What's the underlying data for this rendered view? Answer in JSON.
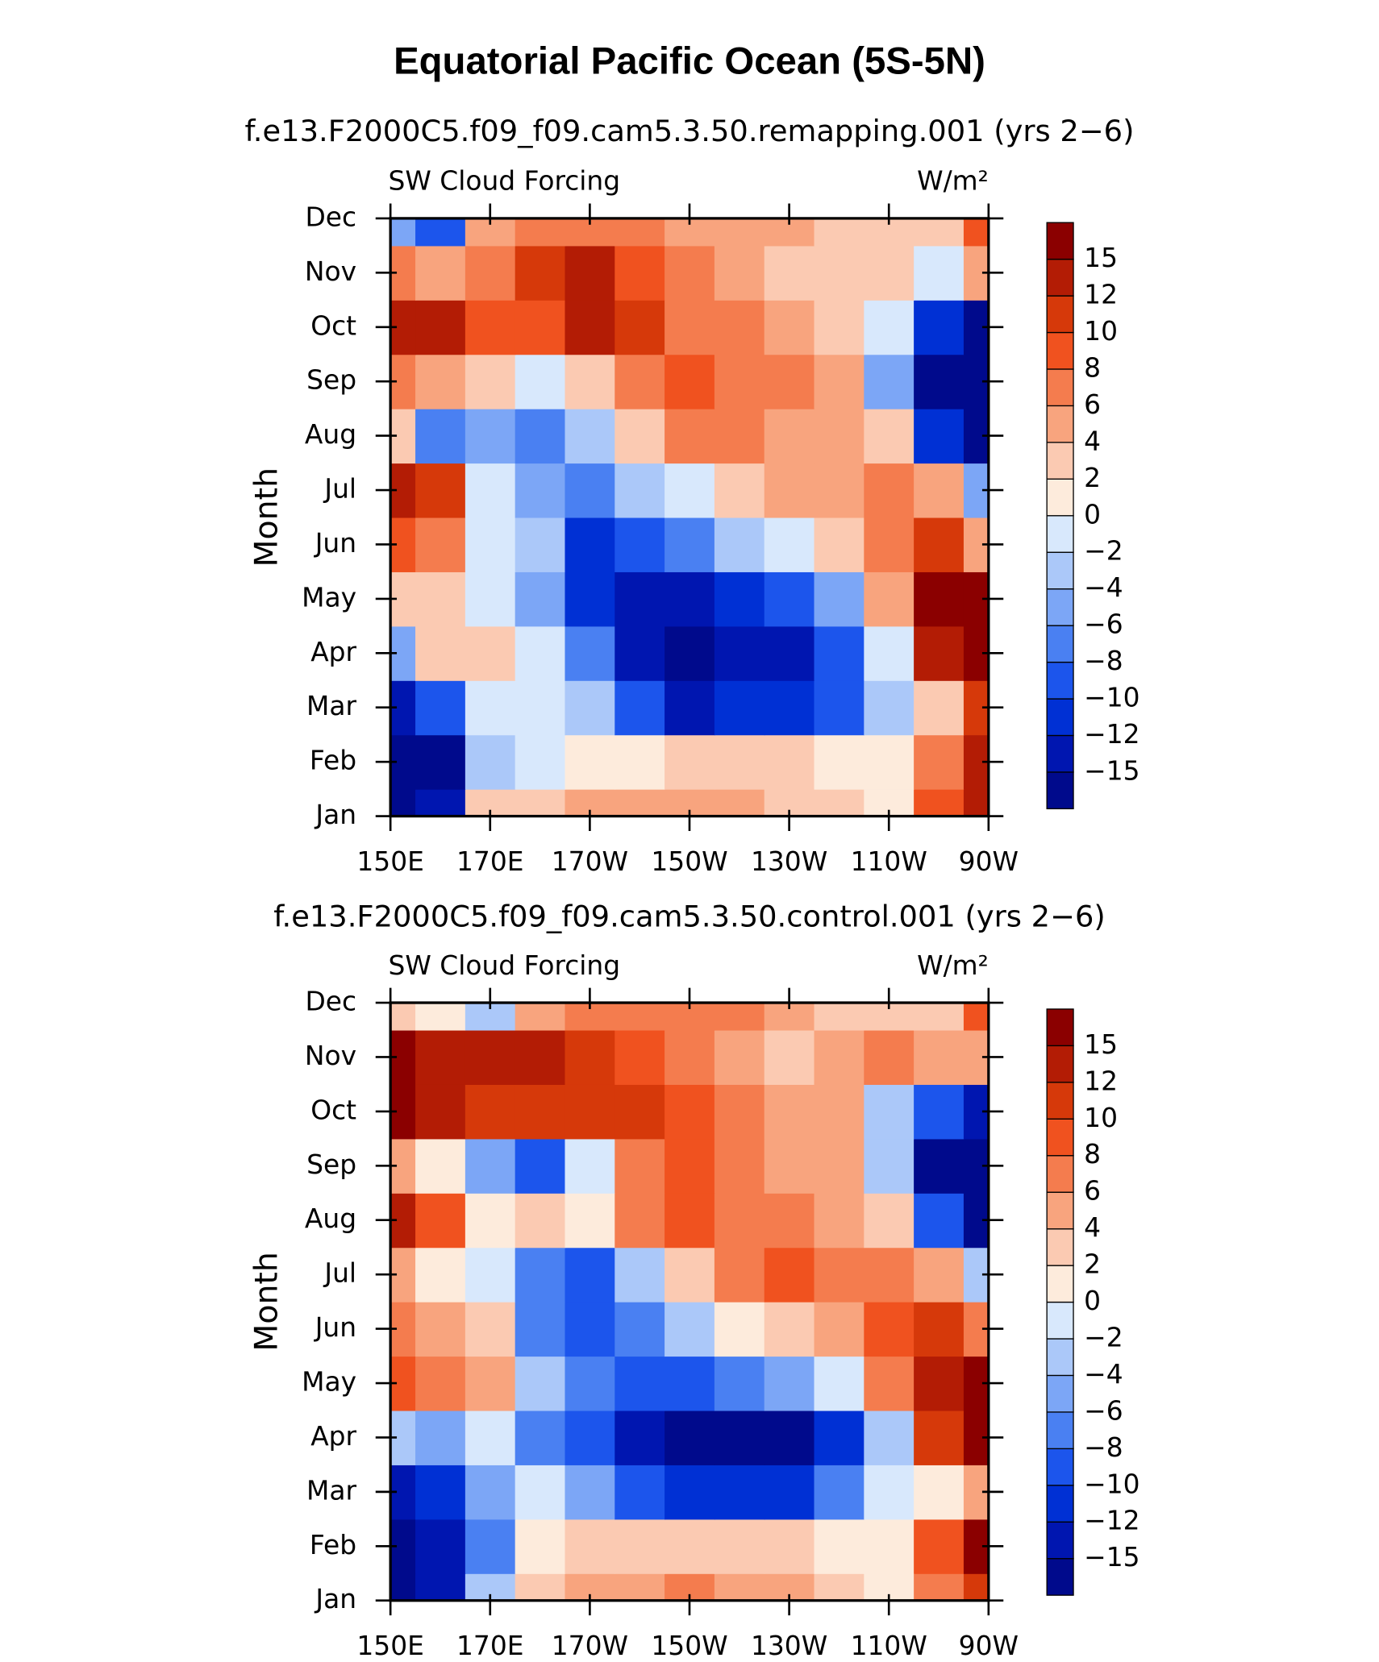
{
  "title": "Equatorial Pacific Ocean (5S-5N)",
  "chart_data": [
    {
      "type": "heatmap",
      "subtitle": "f.e13.F2000C5.f09_f09.cam5.3.50.remapping.001 (yrs 2−6)",
      "left_label": "SW Cloud Forcing",
      "right_label": "W/m²",
      "y_label": "Month",
      "x": [
        150,
        160,
        170,
        180,
        190,
        200,
        210,
        220,
        230,
        240,
        250,
        260,
        270
      ],
      "xlim": [
        150,
        270
      ],
      "xticks": [
        {
          "value": 150,
          "label": "150E"
        },
        {
          "value": 170,
          "label": "170E"
        },
        {
          "value": 190,
          "label": "170W"
        },
        {
          "value": 210,
          "label": "150W"
        },
        {
          "value": 230,
          "label": "130W"
        },
        {
          "value": 250,
          "label": "110W"
        },
        {
          "value": 270,
          "label": "90W"
        }
      ],
      "categories": [
        "Jan",
        "Feb",
        "Mar",
        "Apr",
        "May",
        "Jun",
        "Jul",
        "Aug",
        "Sep",
        "Oct",
        "Nov",
        "Dec"
      ],
      "values": [
        [
          -16,
          -14,
          2,
          3,
          4,
          4,
          4,
          4,
          3,
          2,
          0,
          8,
          12
        ],
        [
          -16,
          -16,
          -4,
          -1,
          0,
          1,
          2,
          2,
          2,
          1,
          0,
          6,
          12
        ],
        [
          -14,
          -10,
          -2,
          -1,
          -4,
          -10,
          -14,
          -12,
          -12,
          -10,
          -4,
          2,
          10
        ],
        [
          -6,
          2,
          2,
          -2,
          -8,
          -14,
          -16,
          -14,
          -15,
          -10,
          -2,
          12,
          15
        ],
        [
          2,
          2,
          -2,
          -6,
          -12,
          -13,
          -14,
          -12,
          -10,
          -6,
          4,
          15,
          15
        ],
        [
          8,
          6,
          -2,
          -4,
          -12,
          -10,
          -8,
          -4,
          -2,
          2,
          6,
          10,
          4
        ],
        [
          14,
          10,
          -2,
          -6,
          -8,
          -4,
          -2,
          2,
          4,
          4,
          6,
          4,
          -6
        ],
        [
          2,
          -8,
          -6,
          -8,
          -4,
          2,
          6,
          6,
          4,
          4,
          2,
          -12,
          -16
        ],
        [
          6,
          4,
          2,
          -2,
          2,
          6,
          8,
          6,
          6,
          4,
          -6,
          -16,
          -16
        ],
        [
          14,
          12,
          8,
          8,
          12,
          10,
          6,
          6,
          4,
          2,
          -2,
          -12,
          -16
        ],
        [
          6,
          4,
          6,
          10,
          12,
          8,
          6,
          4,
          2,
          2,
          2,
          -2,
          4
        ],
        [
          -6,
          -10,
          4,
          6,
          6,
          6,
          4,
          4,
          4,
          2,
          2,
          2,
          8
        ]
      ],
      "levels": [
        {
          "value": -15,
          "label": "−15"
        },
        {
          "value": -12,
          "label": "−12"
        },
        {
          "value": -10,
          "label": "−10"
        },
        {
          "value": -8,
          "label": "−8"
        },
        {
          "value": -6,
          "label": "−6"
        },
        {
          "value": -4,
          "label": "−4"
        },
        {
          "value": -2,
          "label": "−2"
        },
        0,
        2,
        4,
        6,
        8,
        10,
        12,
        15
      ],
      "colors": [
        "#000a8c",
        "#0016b0",
        "#0030d4",
        "#1c55ec",
        "#4a80f2",
        "#7ca6f6",
        "#abc8f9",
        "#d8e8fc",
        "#fdebdc",
        "#fbcab2",
        "#f8a47e",
        "#f47c4e",
        "#f0521f",
        "#d6390a",
        "#b31c05",
        "#8b0000"
      ]
    },
    {
      "type": "heatmap",
      "subtitle": "f.e13.F2000C5.f09_f09.cam5.3.50.control.001 (yrs 2−6)",
      "left_label": "SW Cloud Forcing",
      "right_label": "W/m²",
      "y_label": "Month",
      "x": [
        150,
        160,
        170,
        180,
        190,
        200,
        210,
        220,
        230,
        240,
        250,
        260,
        270
      ],
      "xlim": [
        150,
        270
      ],
      "xticks": [
        {
          "value": 150,
          "label": "150E"
        },
        {
          "value": 170,
          "label": "170E"
        },
        {
          "value": 190,
          "label": "170W"
        },
        {
          "value": 210,
          "label": "150W"
        },
        {
          "value": 230,
          "label": "130W"
        },
        {
          "value": 250,
          "label": "110W"
        },
        {
          "value": 270,
          "label": "90W"
        }
      ],
      "categories": [
        "Jan",
        "Feb",
        "Mar",
        "Apr",
        "May",
        "Jun",
        "Jul",
        "Aug",
        "Sep",
        "Oct",
        "Nov",
        "Dec"
      ],
      "values": [
        [
          -16,
          -14,
          -4,
          2,
          4,
          4,
          6,
          4,
          4,
          2,
          0,
          6,
          10
        ],
        [
          -16,
          -15,
          -8,
          0,
          2,
          2,
          2,
          2,
          2,
          1,
          0,
          8,
          15
        ],
        [
          -14,
          -12,
          -6,
          -2,
          -6,
          -10,
          -12,
          -12,
          -12,
          -8,
          -2,
          0,
          4
        ],
        [
          -4,
          -6,
          -2,
          -8,
          -10,
          -15,
          -16,
          -16,
          -16,
          -12,
          -4,
          10,
          15
        ],
        [
          8,
          6,
          4,
          -4,
          -8,
          -10,
          -10,
          -8,
          -6,
          -2,
          6,
          14,
          15
        ],
        [
          6,
          4,
          2,
          -8,
          -10,
          -8,
          -4,
          0,
          2,
          4,
          8,
          10,
          6
        ],
        [
          4,
          0,
          -2,
          -8,
          -10,
          -4,
          2,
          6,
          8,
          6,
          6,
          4,
          -4
        ],
        [
          12,
          8,
          0,
          2,
          0,
          6,
          8,
          6,
          6,
          4,
          2,
          -10,
          -16
        ],
        [
          4,
          0,
          -6,
          -10,
          -2,
          6,
          8,
          6,
          4,
          4,
          -4,
          -16,
          -16
        ],
        [
          15,
          13,
          10,
          10,
          10,
          10,
          8,
          6,
          4,
          4,
          -4,
          -10,
          -14
        ],
        [
          15,
          12,
          13,
          13,
          10,
          8,
          6,
          4,
          2,
          4,
          6,
          4,
          4
        ],
        [
          2,
          0,
          -4,
          4,
          6,
          6,
          6,
          6,
          4,
          2,
          2,
          2,
          8
        ]
      ],
      "levels": [
        {
          "value": -15,
          "label": "−15"
        },
        {
          "value": -12,
          "label": "−12"
        },
        {
          "value": -10,
          "label": "−10"
        },
        {
          "value": -8,
          "label": "−8"
        },
        {
          "value": -6,
          "label": "−6"
        },
        {
          "value": -4,
          "label": "−4"
        },
        {
          "value": -2,
          "label": "−2"
        },
        0,
        2,
        4,
        6,
        8,
        10,
        12,
        15
      ],
      "colors": [
        "#000a8c",
        "#0016b0",
        "#0030d4",
        "#1c55ec",
        "#4a80f2",
        "#7ca6f6",
        "#abc8f9",
        "#d8e8fc",
        "#fdebdc",
        "#fbcab2",
        "#f8a47e",
        "#f47c4e",
        "#f0521f",
        "#d6390a",
        "#b31c05",
        "#8b0000"
      ]
    }
  ]
}
